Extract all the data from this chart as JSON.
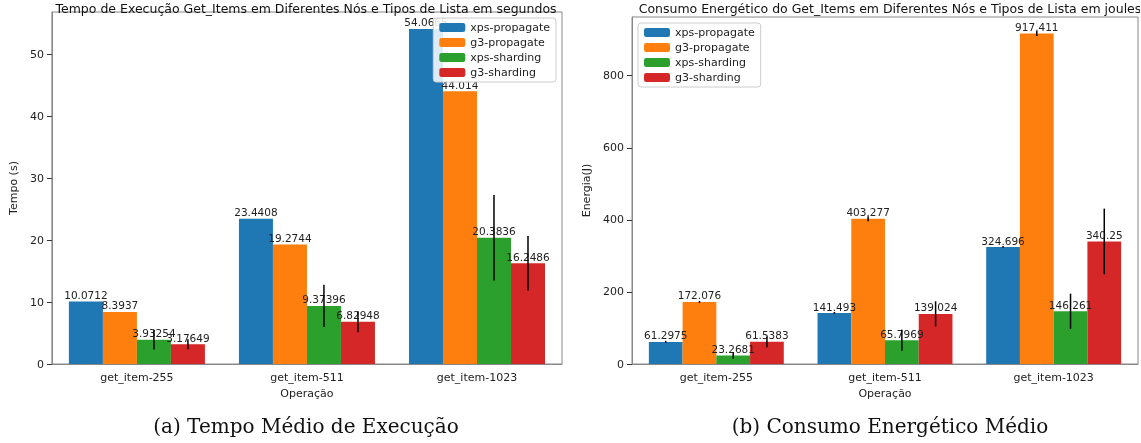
{
  "chart_data": [
    {
      "type": "bar",
      "title": "Tempo de Execução Get_Items em Diferentes Nós e Tipos de Lista em segundos",
      "xlabel": "Operação",
      "ylabel": "Tempo (s)",
      "categories": [
        "get_item-255",
        "get_item-511",
        "get_item-1023"
      ],
      "ylim": [
        0,
        56.8
      ],
      "yticks": [
        0,
        10,
        20,
        30,
        40,
        50
      ],
      "grid": false,
      "legend": "top right",
      "data_labels": true,
      "annotations": [
        "(a) Tempo Médio de Execução"
      ],
      "series": [
        {
          "name": "xps-propagate",
          "color": "#1f77b4",
          "values": [
            10.0712,
            23.4408,
            54.0665
          ]
        },
        {
          "name": "g3-propagate",
          "color": "#ff7f0e",
          "values": [
            8.3937,
            19.2744,
            44.014
          ]
        },
        {
          "name": "xps-sharding",
          "color": "#2ca02c",
          "values": [
            3.93254,
            9.37396,
            20.3836
          ],
          "errors": [
            1.6,
            3.4,
            6.9
          ]
        },
        {
          "name": "g3-sharding",
          "color": "#d62728",
          "values": [
            3.17649,
            6.82948,
            16.2486
          ],
          "errors": [
            0.8,
            1.7,
            4.4
          ]
        }
      ]
    },
    {
      "type": "bar",
      "title": "Consumo Energético do Get_Items em Diferentes Nós e Tipos de Lista em joules",
      "xlabel": "Operação",
      "ylabel": "Energia(J)",
      "categories": [
        "get_item-255",
        "get_item-511",
        "get_item-1023"
      ],
      "ylim": [
        0,
        963
      ],
      "yticks": [
        0,
        200,
        400,
        600,
        800
      ],
      "grid": false,
      "legend": "top left",
      "data_labels": true,
      "annotations": [
        "(b) Consumo Energético Médio"
      ],
      "series": [
        {
          "name": "xps-propagate",
          "color": "#1f77b4",
          "values": [
            61.2975,
            141.493,
            324.696
          ],
          "errors": [
            3,
            3,
            3
          ]
        },
        {
          "name": "g3-propagate",
          "color": "#ff7f0e",
          "values": [
            172.076,
            403.277,
            917.411
          ],
          "errors": [
            3,
            7,
            7
          ]
        },
        {
          "name": "xps-sharding",
          "color": "#2ca02c",
          "values": [
            23.2681,
            65.7969,
            146.261
          ],
          "errors": [
            9,
            29,
            49
          ]
        },
        {
          "name": "g3-sharding",
          "color": "#d62728",
          "values": [
            61.5383,
            139.024,
            340.25
          ],
          "errors": [
            15,
            35,
            91
          ]
        }
      ]
    }
  ]
}
